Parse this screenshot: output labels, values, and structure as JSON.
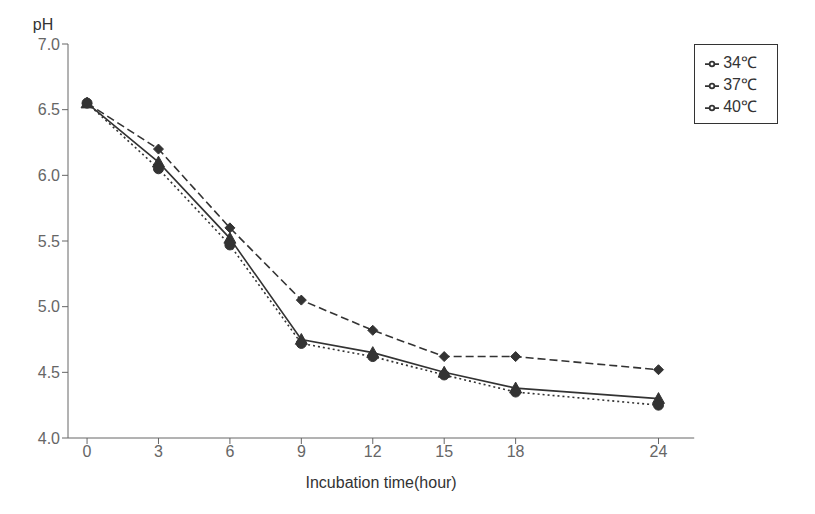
{
  "chart_data": {
    "type": "line",
    "x_label": "Incubation time(hour)",
    "y_label": "pH",
    "x": [
      0,
      3,
      6,
      9,
      12,
      15,
      18,
      24
    ],
    "series": [
      {
        "name": "34℃",
        "values": [
          6.55,
          6.2,
          5.6,
          5.05,
          4.82,
          4.62,
          4.62,
          4.52
        ],
        "color": "#333333",
        "marker": "diamond",
        "line_style": "dashed"
      },
      {
        "name": "37℃",
        "values": [
          6.55,
          6.1,
          5.52,
          4.75,
          4.65,
          4.5,
          4.38,
          4.3
        ],
        "color": "#333333",
        "marker": "triangle",
        "line_style": "solid"
      },
      {
        "name": "40℃",
        "values": [
          6.55,
          6.05,
          5.47,
          4.72,
          4.62,
          4.48,
          4.35,
          4.25
        ],
        "color": "#333333",
        "marker": "circle",
        "line_style": "dotted"
      }
    ],
    "xlim": [
      -0.8,
      25.5
    ],
    "xticks": [
      0,
      3,
      6,
      9,
      12,
      15,
      18,
      24
    ],
    "ylim": [
      4.0,
      7.0
    ],
    "yticks": [
      {
        "value": 4,
        "label": "4.0"
      },
      {
        "value": 4.5,
        "label": "4.5"
      },
      {
        "value": 5,
        "label": "5.0"
      },
      {
        "value": 5.5,
        "label": "5.5"
      },
      {
        "value": 6,
        "label": "6.0"
      },
      {
        "value": 6.5,
        "label": "6.5"
      },
      {
        "value": 7,
        "label": "7.0"
      }
    ],
    "grid": false,
    "legend": "right"
  }
}
